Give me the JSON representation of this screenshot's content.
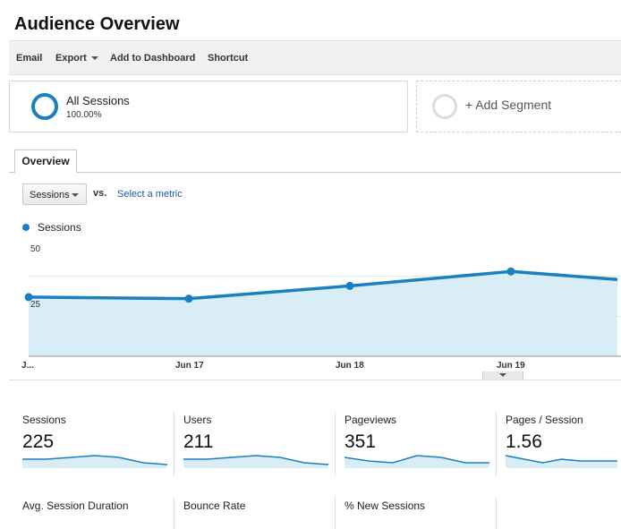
{
  "header": {
    "title": "Audience Overview"
  },
  "toolbar": {
    "email": "Email",
    "export": "Export",
    "add_to_dashboard": "Add to Dashboard",
    "shortcut": "Shortcut"
  },
  "segments": {
    "active": {
      "name": "All Sessions",
      "percent": "100.00%"
    },
    "add_label": "+ Add Segment"
  },
  "tabs": [
    {
      "label": "Overview"
    }
  ],
  "metric_selector": {
    "selected": "Sessions",
    "vs": "vs.",
    "select_metric": "Select a metric"
  },
  "colors": {
    "accent": "#1a80c0",
    "fill": "#d9edf7"
  },
  "chart_data": {
    "type": "area",
    "series": [
      {
        "name": "Sessions",
        "values": [
          37,
          36,
          44,
          53,
          48
        ]
      }
    ],
    "x": [
      "J...",
      "Jun 17",
      "Jun 18",
      "Jun 19",
      ""
    ],
    "y_ticks": [
      "50",
      "25"
    ],
    "ylim": [
      0,
      75
    ],
    "legend": "top-left",
    "grid": true
  },
  "stats": [
    {
      "label": "Sessions",
      "value": "225",
      "spark": [
        5,
        5,
        6,
        7,
        6,
        3,
        2
      ]
    },
    {
      "label": "Users",
      "value": "211",
      "spark": [
        5,
        5,
        6,
        7,
        6,
        3,
        2
      ]
    },
    {
      "label": "Pageviews",
      "value": "351",
      "spark": [
        6,
        4,
        3,
        7,
        6,
        3,
        3
      ]
    },
    {
      "label": "Pages / Session",
      "value": "1.56",
      "spark": [
        7,
        5,
        3,
        5,
        4,
        4,
        4
      ]
    },
    {
      "label": "Avg. Session Duration",
      "value": ""
    },
    {
      "label": "Bounce Rate",
      "value": ""
    },
    {
      "label": "% New Sessions",
      "value": ""
    }
  ]
}
